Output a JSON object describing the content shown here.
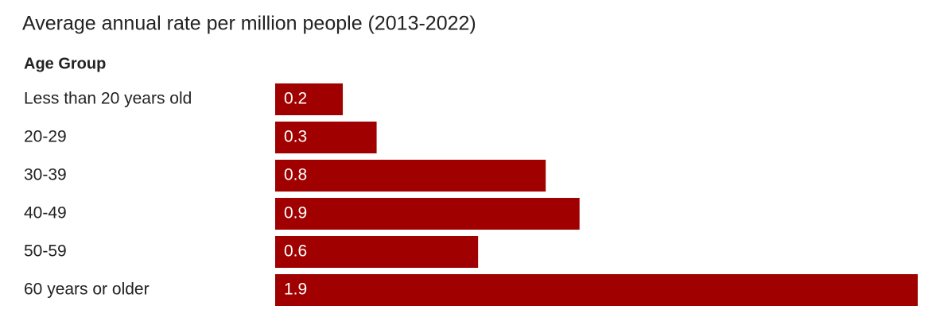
{
  "chart_data": {
    "type": "bar",
    "orientation": "horizontal",
    "title": "Average annual rate per million people (2013-2022)",
    "category_header": "Age Group",
    "categories": [
      "Less than 20 years old",
      "20-29",
      "30-39",
      "40-49",
      "50-59",
      "60 years or older"
    ],
    "values": [
      0.2,
      0.3,
      0.8,
      0.9,
      0.6,
      1.9
    ],
    "color": "#a00000"
  }
}
